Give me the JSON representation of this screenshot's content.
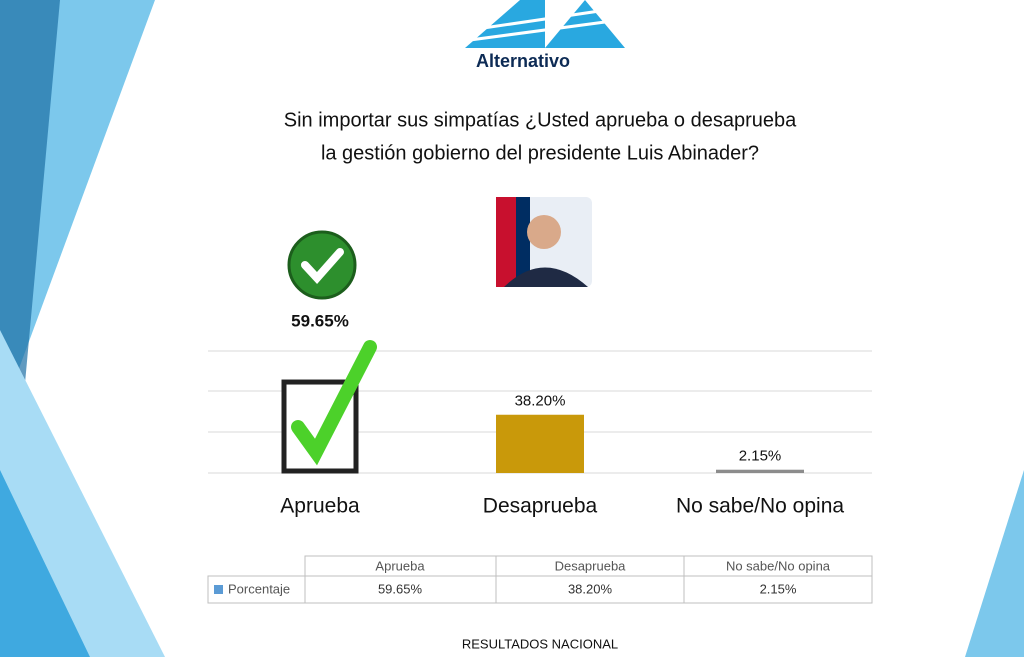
{
  "header": {
    "logo_text": "Alternativo"
  },
  "chart_data": {
    "type": "bar",
    "title": [
      "Sin importar sus simpatías ¿Usted aprueba o desaprueba",
      "la gestión gobierno del presidente Luis Abinader?"
    ],
    "categories": [
      "Aprueba",
      "Desaprueba",
      "No sabe/No opina"
    ],
    "series": [
      {
        "name": "Porcentaje",
        "color": "#5b9bd5",
        "bar_colors": [
          "#ffffff",
          "#c9990a",
          "#8c8c8c"
        ],
        "values": [
          59.65,
          38.2,
          2.15
        ],
        "value_labels": [
          "59.65%",
          "38.20%",
          "2.15%"
        ]
      }
    ],
    "ylim": [
      0,
      80
    ]
  },
  "footer": "RESULTADOS NACIONAL"
}
